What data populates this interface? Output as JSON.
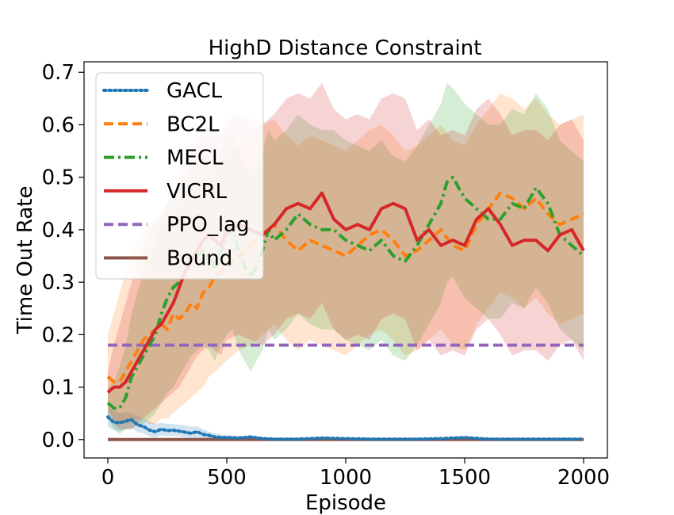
{
  "chart_data": {
    "type": "line",
    "title": "HighD Distance Constraint",
    "xlabel": "Episode",
    "ylabel": "Time Out Rate",
    "xlim": [
      -100,
      2100
    ],
    "ylim": [
      -0.035,
      0.72
    ],
    "xticks": [
      0,
      500,
      1000,
      1500,
      2000
    ],
    "yticks": [
      0.0,
      0.1,
      0.2,
      0.3,
      0.4,
      0.5,
      0.6,
      0.7
    ],
    "xtick_labels": [
      "0",
      "500",
      "1000",
      "1500",
      "2000"
    ],
    "ytick_labels": [
      "0.0",
      "0.1",
      "0.2",
      "0.3",
      "0.4",
      "0.5",
      "0.6",
      "0.7"
    ],
    "legend_position": "upper-left",
    "series": [
      {
        "name": "GACL",
        "color": "#1f77b4",
        "style": "dotted",
        "x": [
          0,
          25,
          50,
          75,
          100,
          125,
          150,
          175,
          200,
          225,
          250,
          275,
          300,
          325,
          350,
          375,
          400,
          425,
          450,
          475,
          500,
          550,
          600,
          650,
          700,
          800,
          900,
          1000,
          1100,
          1200,
          1300,
          1400,
          1500,
          1600,
          1700,
          1800,
          1900,
          2000
        ],
        "y": [
          0.043,
          0.033,
          0.032,
          0.035,
          0.038,
          0.028,
          0.025,
          0.018,
          0.015,
          0.02,
          0.017,
          0.018,
          0.016,
          0.014,
          0.012,
          0.015,
          0.01,
          0.008,
          0.005,
          0.004,
          0.004,
          0.003,
          0.005,
          0.002,
          0.001,
          0.001,
          0.003,
          0.002,
          0.001,
          0.001,
          0.001,
          0.002,
          0.004,
          0.001,
          0.001,
          0.001,
          0.001,
          0.001
        ],
        "band_upper": [
          0.06,
          0.055,
          0.05,
          0.052,
          0.05,
          0.045,
          0.04,
          0.035,
          0.03,
          0.032,
          0.03,
          0.03,
          0.028,
          0.027,
          0.025,
          0.025,
          0.02,
          0.015,
          0.012,
          0.01,
          0.008,
          0.007,
          0.008,
          0.005,
          0.003,
          0.003,
          0.005,
          0.004,
          0.003,
          0.003,
          0.003,
          0.004,
          0.006,
          0.003,
          0.003,
          0.003,
          0.003,
          0.003
        ],
        "band_lower": [
          0.025,
          0.018,
          0.016,
          0.02,
          0.022,
          0.014,
          0.012,
          0.006,
          0.004,
          0.008,
          0.006,
          0.007,
          0.006,
          0.004,
          0.002,
          0.004,
          0.002,
          0.001,
          0,
          0,
          0,
          0,
          0.001,
          0,
          0,
          0,
          0.001,
          0,
          0,
          0,
          0,
          0,
          0.001,
          0,
          0,
          0,
          0,
          0
        ]
      },
      {
        "name": "BC2L",
        "color": "#ff7f0e",
        "style": "dashed",
        "x": [
          0,
          25,
          50,
          75,
          100,
          125,
          150,
          175,
          200,
          225,
          250,
          275,
          300,
          325,
          350,
          375,
          400,
          425,
          450,
          475,
          500,
          550,
          600,
          650,
          700,
          750,
          800,
          850,
          900,
          950,
          1000,
          1050,
          1100,
          1150,
          1200,
          1250,
          1300,
          1350,
          1400,
          1450,
          1500,
          1550,
          1600,
          1650,
          1700,
          1750,
          1800,
          1850,
          1900,
          1950,
          2000
        ],
        "y": [
          0.12,
          0.11,
          0.11,
          0.13,
          0.15,
          0.17,
          0.19,
          0.2,
          0.21,
          0.22,
          0.21,
          0.24,
          0.23,
          0.24,
          0.26,
          0.25,
          0.28,
          0.29,
          0.31,
          0.32,
          0.33,
          0.35,
          0.37,
          0.39,
          0.41,
          0.38,
          0.36,
          0.38,
          0.37,
          0.36,
          0.35,
          0.37,
          0.39,
          0.4,
          0.38,
          0.35,
          0.36,
          0.38,
          0.4,
          0.37,
          0.36,
          0.41,
          0.44,
          0.47,
          0.46,
          0.44,
          0.46,
          0.43,
          0.41,
          0.42,
          0.43
        ],
        "band_upper": [
          0.2,
          0.24,
          0.28,
          0.32,
          0.36,
          0.38,
          0.4,
          0.41,
          0.42,
          0.43,
          0.42,
          0.45,
          0.44,
          0.45,
          0.47,
          0.46,
          0.5,
          0.5,
          0.52,
          0.53,
          0.54,
          0.56,
          0.58,
          0.6,
          0.61,
          0.58,
          0.56,
          0.58,
          0.57,
          0.56,
          0.55,
          0.57,
          0.59,
          0.6,
          0.58,
          0.55,
          0.56,
          0.58,
          0.6,
          0.57,
          0.56,
          0.6,
          0.63,
          0.66,
          0.65,
          0.63,
          0.65,
          0.62,
          0.6,
          0.61,
          0.62
        ],
        "band_lower": [
          0.06,
          0.04,
          0.03,
          0.03,
          0.04,
          0.04,
          0.04,
          0.03,
          0.03,
          0.04,
          0.04,
          0.05,
          0.06,
          0.07,
          0.08,
          0.09,
          0.1,
          0.12,
          0.13,
          0.14,
          0.15,
          0.17,
          0.18,
          0.2,
          0.22,
          0.19,
          0.17,
          0.19,
          0.18,
          0.17,
          0.16,
          0.18,
          0.2,
          0.21,
          0.19,
          0.16,
          0.17,
          0.19,
          0.21,
          0.18,
          0.17,
          0.22,
          0.25,
          0.28,
          0.27,
          0.25,
          0.27,
          0.24,
          0.22,
          0.23,
          0.24
        ]
      },
      {
        "name": "MECL",
        "color": "#2ca02c",
        "style": "dashdot",
        "x": [
          0,
          25,
          50,
          75,
          100,
          125,
          150,
          175,
          200,
          225,
          250,
          275,
          300,
          325,
          350,
          375,
          400,
          425,
          450,
          475,
          500,
          525,
          550,
          575,
          600,
          625,
          650,
          675,
          700,
          750,
          800,
          850,
          900,
          950,
          1000,
          1050,
          1100,
          1150,
          1200,
          1250,
          1300,
          1350,
          1400,
          1425,
          1450,
          1500,
          1550,
          1600,
          1650,
          1700,
          1750,
          1800,
          1850,
          1900,
          1950,
          2000
        ],
        "y": [
          0.07,
          0.06,
          0.06,
          0.08,
          0.12,
          0.14,
          0.16,
          0.18,
          0.2,
          0.24,
          0.27,
          0.29,
          0.3,
          0.32,
          0.34,
          0.35,
          0.36,
          0.35,
          0.33,
          0.36,
          0.39,
          0.4,
          0.36,
          0.33,
          0.31,
          0.33,
          0.36,
          0.4,
          0.38,
          0.4,
          0.43,
          0.41,
          0.4,
          0.4,
          0.38,
          0.37,
          0.36,
          0.38,
          0.35,
          0.34,
          0.37,
          0.41,
          0.45,
          0.49,
          0.5,
          0.46,
          0.44,
          0.42,
          0.42,
          0.45,
          0.44,
          0.48,
          0.45,
          0.39,
          0.37,
          0.35
        ],
        "band_upper": [
          0.1,
          0.11,
          0.14,
          0.18,
          0.24,
          0.28,
          0.32,
          0.35,
          0.38,
          0.42,
          0.45,
          0.47,
          0.48,
          0.5,
          0.52,
          0.53,
          0.55,
          0.54,
          0.52,
          0.55,
          0.58,
          0.59,
          0.55,
          0.52,
          0.5,
          0.52,
          0.55,
          0.59,
          0.57,
          0.59,
          0.62,
          0.6,
          0.59,
          0.59,
          0.57,
          0.56,
          0.55,
          0.57,
          0.54,
          0.53,
          0.56,
          0.6,
          0.64,
          0.68,
          0.67,
          0.64,
          0.62,
          0.6,
          0.6,
          0.63,
          0.62,
          0.66,
          0.63,
          0.57,
          0.55,
          0.53
        ],
        "band_lower": [
          0.04,
          0.02,
          0.01,
          0.02,
          0.02,
          0.03,
          0.03,
          0.04,
          0.05,
          0.07,
          0.09,
          0.1,
          0.12,
          0.14,
          0.16,
          0.17,
          0.18,
          0.17,
          0.15,
          0.18,
          0.2,
          0.21,
          0.17,
          0.15,
          0.13,
          0.15,
          0.17,
          0.21,
          0.19,
          0.21,
          0.24,
          0.22,
          0.21,
          0.21,
          0.19,
          0.18,
          0.17,
          0.19,
          0.16,
          0.15,
          0.18,
          0.22,
          0.26,
          0.3,
          0.31,
          0.27,
          0.25,
          0.23,
          0.23,
          0.26,
          0.25,
          0.29,
          0.26,
          0.21,
          0.19,
          0.17
        ]
      },
      {
        "name": "VICRL",
        "color": "#d62728",
        "style": "solid",
        "x": [
          0,
          25,
          50,
          75,
          100,
          125,
          150,
          175,
          200,
          225,
          250,
          275,
          300,
          325,
          350,
          375,
          400,
          425,
          450,
          475,
          500,
          550,
          600,
          650,
          700,
          750,
          800,
          850,
          900,
          950,
          1000,
          1050,
          1100,
          1150,
          1200,
          1250,
          1300,
          1350,
          1400,
          1450,
          1500,
          1550,
          1600,
          1650,
          1700,
          1750,
          1800,
          1850,
          1900,
          1950,
          2000
        ],
        "y": [
          0.09,
          0.1,
          0.1,
          0.11,
          0.13,
          0.15,
          0.17,
          0.19,
          0.21,
          0.22,
          0.24,
          0.26,
          0.29,
          0.32,
          0.34,
          0.36,
          0.38,
          0.39,
          0.38,
          0.37,
          0.4,
          0.41,
          0.4,
          0.39,
          0.41,
          0.44,
          0.45,
          0.44,
          0.47,
          0.42,
          0.4,
          0.41,
          0.4,
          0.44,
          0.45,
          0.44,
          0.38,
          0.4,
          0.37,
          0.38,
          0.37,
          0.42,
          0.44,
          0.41,
          0.37,
          0.38,
          0.38,
          0.36,
          0.39,
          0.4,
          0.36
        ],
        "band_upper": [
          0.13,
          0.18,
          0.22,
          0.26,
          0.3,
          0.34,
          0.37,
          0.4,
          0.42,
          0.43,
          0.45,
          0.47,
          0.5,
          0.53,
          0.55,
          0.57,
          0.59,
          0.6,
          0.59,
          0.58,
          0.61,
          0.62,
          0.61,
          0.6,
          0.62,
          0.65,
          0.66,
          0.65,
          0.68,
          0.63,
          0.61,
          0.62,
          0.61,
          0.65,
          0.66,
          0.65,
          0.59,
          0.61,
          0.58,
          0.59,
          0.58,
          0.63,
          0.65,
          0.62,
          0.58,
          0.59,
          0.59,
          0.57,
          0.6,
          0.61,
          0.57
        ],
        "band_lower": [
          0.05,
          0.03,
          0.02,
          0.02,
          0.02,
          0.03,
          0.04,
          0.05,
          0.06,
          0.07,
          0.08,
          0.09,
          0.1,
          0.12,
          0.14,
          0.16,
          0.17,
          0.18,
          0.17,
          0.16,
          0.19,
          0.2,
          0.19,
          0.18,
          0.2,
          0.23,
          0.24,
          0.23,
          0.26,
          0.21,
          0.19,
          0.2,
          0.19,
          0.23,
          0.24,
          0.23,
          0.17,
          0.19,
          0.16,
          0.17,
          0.16,
          0.21,
          0.23,
          0.2,
          0.16,
          0.17,
          0.17,
          0.15,
          0.18,
          0.19,
          0.15
        ]
      },
      {
        "name": "PPO_lag",
        "color": "#9467bd",
        "style": "dashed",
        "x": [
          0,
          2000
        ],
        "y": [
          0.18,
          0.18
        ]
      },
      {
        "name": "Bound",
        "color": "#8c564b",
        "style": "solid",
        "x": [
          0,
          2000
        ],
        "y": [
          0.0,
          0.0
        ]
      }
    ]
  }
}
